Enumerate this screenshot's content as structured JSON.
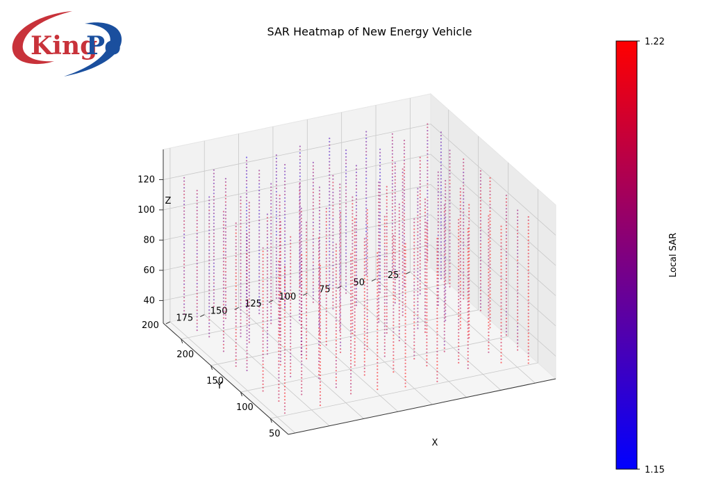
{
  "logo": {
    "text_left": "King",
    "text_right": "Po"
  },
  "chart_data": {
    "type": "3d-scatter",
    "title": "SAR Heatmap of New Energy Vehicle",
    "xlabel": "X",
    "ylabel": "Y",
    "zlabel": "Z",
    "xlim": [
      20,
      230
    ],
    "ylim": [
      10,
      205
    ],
    "zlim": [
      25,
      140
    ],
    "x_ticks": [
      50,
      100,
      150,
      200
    ],
    "y_ticks": [
      25,
      50,
      75,
      100,
      125,
      150,
      175,
      200
    ],
    "z_ticks": [
      40,
      60,
      80,
      100,
      120
    ],
    "grid": true,
    "colorbar": {
      "label": "Local SAR",
      "min": 1.15,
      "max": 1.22,
      "min_label": "1.15",
      "max_label": "1.22",
      "colors": [
        "#0000ff",
        "#ff0000"
      ]
    },
    "grid_points": {
      "x": [
        40,
        62,
        84,
        106,
        128,
        150,
        172,
        194,
        216
      ],
      "y": [
        20,
        42,
        64,
        86,
        108,
        130,
        152,
        174,
        196
      ],
      "z_range": [
        30,
        130
      ]
    },
    "marker": {
      "size": 2,
      "alpha": 0.5
    }
  }
}
